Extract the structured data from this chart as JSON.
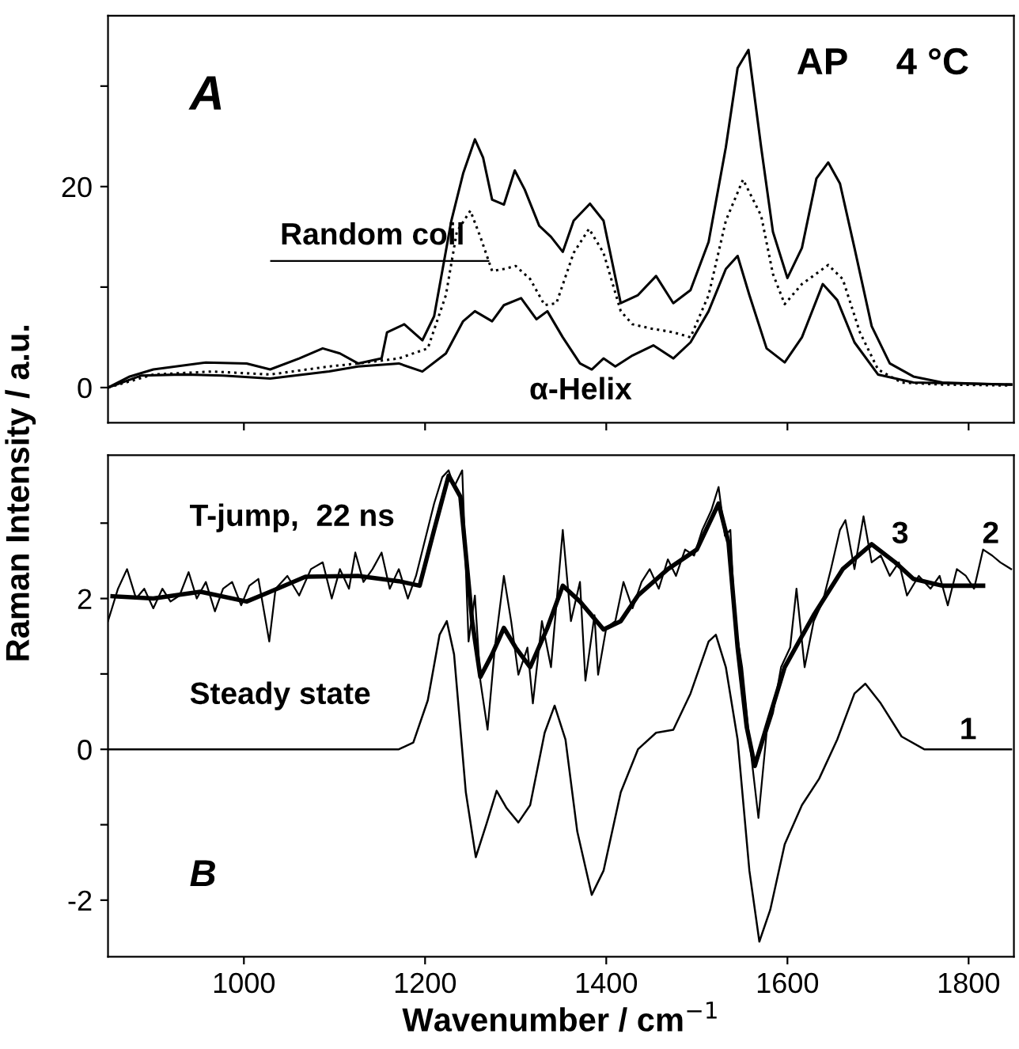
{
  "chart_data": [
    {
      "type": "line",
      "ylabel": "Raman Intensity / a.u.",
      "xlim": [
        850,
        1850
      ],
      "ylim": [
        -3.5,
        37
      ],
      "xticks": [
        {
          "value": 1000,
          "label": null
        },
        {
          "value": 1200,
          "label": null
        },
        {
          "value": 1400,
          "label": null
        },
        {
          "value": 1600,
          "label": null
        },
        {
          "value": 1800,
          "label": null
        }
      ],
      "yticks": [
        0,
        {
          "value": 10,
          "label": null
        },
        20,
        {
          "value": 30,
          "label": null
        }
      ],
      "tick_labels": "y",
      "grid": false,
      "legend": false,
      "annotations": [
        "A",
        "AP",
        "4 °C"
      ],
      "series": [
        {
          "color": "#000000",
          "line_style": "solid",
          "x": [
            850,
            874,
            900,
            958,
            1003,
            1029,
            1061,
            1087,
            1106,
            1126,
            1152,
            1158,
            1177,
            1197,
            1210,
            1229,
            1242,
            1255,
            1264,
            1274,
            1287,
            1299,
            1310,
            1326,
            1339,
            1352,
            1364,
            1382,
            1397,
            1416,
            1435,
            1455,
            1474,
            1493,
            1513,
            1532,
            1545,
            1557,
            1571,
            1584,
            1600,
            1616,
            1632,
            1645,
            1658,
            1674,
            1693,
            1713,
            1739,
            1771,
            1803,
            1847
          ],
          "values": [
            0,
            1.1,
            1.8,
            2.5,
            2.4,
            1.8,
            2.9,
            3.9,
            3.4,
            2.4,
            2.9,
            5.5,
            6.3,
            4.7,
            7.1,
            16.6,
            21.3,
            24.7,
            22.9,
            18.7,
            18.2,
            21.6,
            19.7,
            16.1,
            15.0,
            13.5,
            16.6,
            18.3,
            16.6,
            8.4,
            9.2,
            11.1,
            8.4,
            9.7,
            14.5,
            23.9,
            31.8,
            33.6,
            23.9,
            15.5,
            10.9,
            13.9,
            20.8,
            22.4,
            20.3,
            13.9,
            6.1,
            2.4,
            1.1,
            0.5,
            0.4,
            0.3
          ]
        },
        {
          "name": "Random coil",
          "color": "#000000",
          "line_style": "dotted",
          "x": [
            850,
            900,
            965,
            1029,
            1094,
            1126,
            1171,
            1203,
            1223,
            1235,
            1250,
            1261,
            1274,
            1287,
            1300,
            1316,
            1332,
            1345,
            1364,
            1381,
            1397,
            1416,
            1429,
            1448,
            1474,
            1493,
            1513,
            1532,
            1551,
            1571,
            1584,
            1597,
            1616,
            1645,
            1661,
            1680,
            1700,
            1726,
            1771,
            1847
          ],
          "values": [
            0,
            1.3,
            1.6,
            1.3,
            2.1,
            2.4,
            2.9,
            3.9,
            9.2,
            15.5,
            17.6,
            15.0,
            11.6,
            11.8,
            12.1,
            10.8,
            8.2,
            8.4,
            13.4,
            15.8,
            13.4,
            7.6,
            6.3,
            5.9,
            5.5,
            5.0,
            9.2,
            16.6,
            20.7,
            17.1,
            11.3,
            8.3,
            10.3,
            12.2,
            10.8,
            5.5,
            1.8,
            0.5,
            0.3,
            0.2
          ]
        },
        {
          "name": "α-Helix",
          "color": "#000000",
          "line_style": "solid",
          "x": [
            850,
            887,
            932,
            977,
            1029,
            1094,
            1126,
            1171,
            1197,
            1223,
            1242,
            1255,
            1274,
            1287,
            1306,
            1323,
            1335,
            1352,
            1371,
            1384,
            1397,
            1410,
            1429,
            1452,
            1474,
            1493,
            1513,
            1532,
            1545,
            1558,
            1577,
            1597,
            1616,
            1639,
            1655,
            1674,
            1700,
            1739,
            1847
          ],
          "values": [
            0,
            1.2,
            1.3,
            1.2,
            0.9,
            1.6,
            2.1,
            2.4,
            1.6,
            3.4,
            6.6,
            7.6,
            6.6,
            8.2,
            8.9,
            6.8,
            7.6,
            5.0,
            2.4,
            1.8,
            2.9,
            2.1,
            3.2,
            4.2,
            2.9,
            4.5,
            7.6,
            11.8,
            13.1,
            9.2,
            3.9,
            2.5,
            5.0,
            10.3,
            8.7,
            4.5,
            1.3,
            0.5,
            0.3
          ]
        }
      ]
    },
    {
      "type": "line",
      "xlabel": "Wavenumber / cm$^{−1}$",
      "xlim": [
        850,
        1850
      ],
      "ylim": [
        -2.75,
        3.9
      ],
      "xticks": [
        1000,
        1200,
        1400,
        1600,
        1800
      ],
      "yticks": [
        {
          "value": -2,
          "label": "-2"
        },
        {
          "value": -1,
          "label": null
        },
        0,
        {
          "value": 1,
          "label": null
        },
        2,
        {
          "value": 3,
          "label": null
        }
      ],
      "grid": false,
      "legend": false,
      "annotations": [
        "T-jump,  22 ns",
        "Steady state",
        "B"
      ],
      "series": [
        {
          "name": "1",
          "color": "#000000",
          "line_style": "solid",
          "x": [
            850,
            1171,
            1187,
            1203,
            1216,
            1224,
            1232,
            1245,
            1256,
            1268,
            1279,
            1290,
            1303,
            1316,
            1332,
            1343,
            1355,
            1368,
            1384,
            1397,
            1416,
            1435,
            1455,
            1474,
            1493,
            1513,
            1521,
            1532,
            1545,
            1558,
            1569,
            1581,
            1597,
            1616,
            1635,
            1655,
            1674,
            1686,
            1703,
            1726,
            1751,
            1847
          ],
          "values": [
            0,
            0,
            0.09,
            0.65,
            1.52,
            1.7,
            1.26,
            -0.57,
            -1.43,
            -0.98,
            -0.55,
            -0.78,
            -0.97,
            -0.74,
            0.22,
            0.58,
            0.13,
            -1.09,
            -1.93,
            -1.61,
            -0.57,
            0,
            0.22,
            0.26,
            0.74,
            1.43,
            1.52,
            1.09,
            0.13,
            -1.61,
            -2.55,
            -2.13,
            -1.26,
            -0.74,
            -0.39,
            0.13,
            0.74,
            0.87,
            0.61,
            0.17,
            0,
            0
          ]
        },
        {
          "name": "2",
          "color": "#000000",
          "line_style": "solid",
          "x": [
            850,
            861,
            871,
            881,
            890,
            900,
            910,
            919,
            929,
            939,
            948,
            958,
            968,
            977,
            987,
            997,
            1006,
            1016,
            1028,
            1035,
            1048,
            1061,
            1074,
            1087,
            1097,
            1106,
            1116,
            1123,
            1132,
            1142,
            1152,
            1161,
            1171,
            1181,
            1190,
            1200,
            1210,
            1219,
            1226,
            1232,
            1241,
            1248,
            1255,
            1261,
            1269,
            1277,
            1287,
            1295,
            1303,
            1313,
            1319,
            1329,
            1339,
            1352,
            1361,
            1371,
            1377,
            1387,
            1391,
            1400,
            1410,
            1419,
            1429,
            1439,
            1448,
            1458,
            1468,
            1477,
            1487,
            1497,
            1506,
            1516,
            1524,
            1531,
            1537,
            1542,
            1550,
            1558,
            1568,
            1577,
            1584,
            1593,
            1603,
            1610,
            1619,
            1629,
            1639,
            1648,
            1658,
            1664,
            1674,
            1684,
            1693,
            1703,
            1713,
            1723,
            1732,
            1745,
            1758,
            1768,
            1777,
            1787,
            1797,
            1806,
            1816,
            1826,
            1835,
            1847
          ],
          "values": [
            1.7,
            2.13,
            2.39,
            2.0,
            2.13,
            1.87,
            2.13,
            1.96,
            2.04,
            2.35,
            2.0,
            2.22,
            1.83,
            2.13,
            2.22,
            1.91,
            2.17,
            2.26,
            1.43,
            2.13,
            2.3,
            2.04,
            2.39,
            2.48,
            2.0,
            2.39,
            2.13,
            2.61,
            2.22,
            2.39,
            2.61,
            2.13,
            2.39,
            2.0,
            2.3,
            2.78,
            3.26,
            3.61,
            3.7,
            3.48,
            3.7,
            1.43,
            2.04,
            0.91,
            0.26,
            1.35,
            2.3,
            1.7,
            0.99,
            1.35,
            0.61,
            1.7,
            1.09,
            2.91,
            1.7,
            2.22,
            0.91,
            1.78,
            0.99,
            1.61,
            1.7,
            2.22,
            1.87,
            2.22,
            2.39,
            2.13,
            2.52,
            2.3,
            2.65,
            2.57,
            2.91,
            3.17,
            3.48,
            2.83,
            2.91,
            1.7,
            1.09,
            0.13,
            -0.91,
            0.22,
            0.48,
            1.09,
            1.35,
            2.13,
            1.09,
            1.7,
            1.96,
            2.39,
            2.91,
            3.04,
            2.39,
            3.09,
            2.48,
            2.57,
            2.3,
            2.48,
            2.04,
            2.3,
            2.13,
            2.3,
            1.91,
            2.39,
            2.3,
            2.13,
            2.65,
            2.57,
            2.48,
            2.39
          ]
        },
        {
          "name": "3",
          "color": "#000000",
          "line_style": "solid",
          "x": [
            855,
            900,
            952,
            1003,
            1029,
            1068,
            1126,
            1171,
            1194,
            1210,
            1226,
            1239,
            1252,
            1261,
            1274,
            1287,
            1300,
            1316,
            1335,
            1352,
            1371,
            1397,
            1416,
            1435,
            1468,
            1500,
            1524,
            1535,
            1545,
            1555,
            1564,
            1577,
            1597,
            1629,
            1661,
            1693,
            1719,
            1739,
            1771,
            1816
          ],
          "values": [
            2.03,
            2.0,
            2.09,
            1.96,
            2.09,
            2.29,
            2.3,
            2.23,
            2.17,
            2.91,
            3.63,
            3.35,
            1.7,
            0.96,
            1.26,
            1.61,
            1.35,
            1.09,
            1.61,
            2.17,
            1.96,
            1.59,
            1.7,
            2.04,
            2.39,
            2.65,
            3.26,
            2.74,
            1.35,
            0.3,
            -0.22,
            0.3,
            1.09,
            1.78,
            2.39,
            2.72,
            2.48,
            2.26,
            2.17,
            2.17
          ]
        }
      ]
    }
  ]
}
